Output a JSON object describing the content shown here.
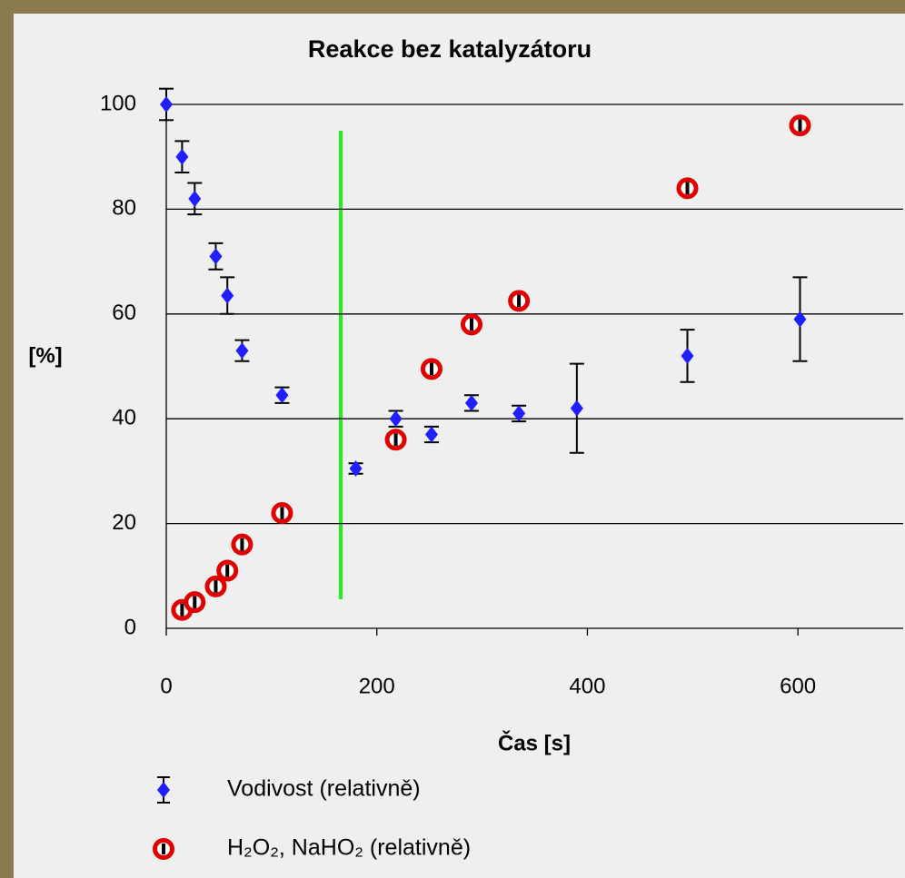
{
  "chart_data": {
    "type": "scatter",
    "title": "Reakce bez katalyzátoru",
    "xlabel": "Čas [s]",
    "ylabel": "[%]",
    "xlim": [
      0,
      700
    ],
    "xticks": [
      0,
      200,
      400,
      600
    ],
    "ylim": [
      0,
      100
    ],
    "yticks": [
      0,
      20,
      40,
      60,
      80,
      100
    ],
    "grid": true,
    "series": [
      {
        "name": "Vodivost (relativně)",
        "color": "#1f1fff",
        "marker": "diamond",
        "x": [
          0,
          15,
          27,
          47,
          58,
          72,
          110,
          180,
          218,
          252,
          290,
          335,
          390,
          495,
          602
        ],
        "values": [
          100,
          90,
          82,
          71,
          63.5,
          53,
          44.5,
          30.5,
          40,
          37,
          43,
          41,
          42,
          52,
          59
        ],
        "errors": [
          3,
          3,
          3,
          2.5,
          3.5,
          2,
          1.5,
          1,
          1.5,
          1.5,
          1.5,
          1.5,
          8.5,
          5,
          8
        ]
      },
      {
        "name": "H₂O₂, NaHO₂ (relativně)",
        "color": "#e00000",
        "marker": "circle",
        "x": [
          15,
          27,
          47,
          58,
          72,
          110,
          218,
          252,
          290,
          335,
          495,
          602
        ],
        "values": [
          3.5,
          5,
          8,
          11,
          16,
          22,
          36,
          49.5,
          58,
          62.5,
          84,
          96
        ],
        "errors": [
          1,
          1,
          1,
          1,
          1,
          1,
          1,
          1,
          1,
          1,
          1,
          1
        ]
      }
    ]
  }
}
